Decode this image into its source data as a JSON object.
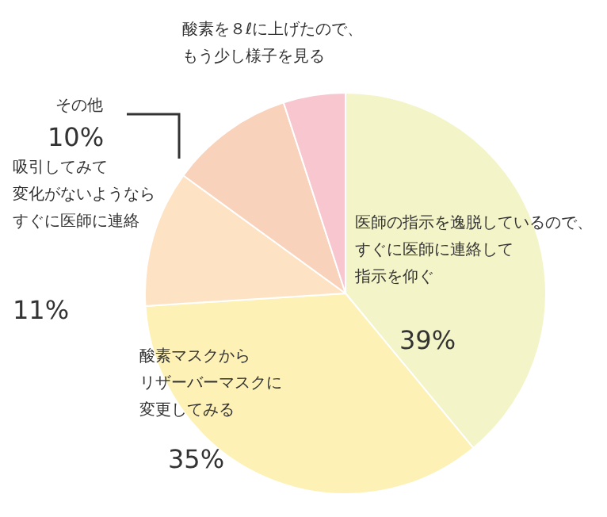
{
  "chart_data": {
    "type": "pie",
    "categories": [
      "医師の指示を逸脱しているので、すぐに医師に連絡して指示を仰ぐ",
      "酸素マスクからリザーバーマスクに変更してみる",
      "吸引してみて変化がないようならすぐに医師に連絡",
      "その他",
      "酸素を８ℓに上げたので、もう少し様子を見る"
    ],
    "values": [
      39,
      35,
      11,
      10,
      5
    ],
    "colors": [
      "#f4f4c9",
      "#fdf1b5",
      "#fde2c4",
      "#f9d2bb",
      "#f8c6cf"
    ],
    "value_labels": [
      "39%",
      "35%",
      "11%",
      "10%",
      null
    ],
    "legend": false
  }
}
